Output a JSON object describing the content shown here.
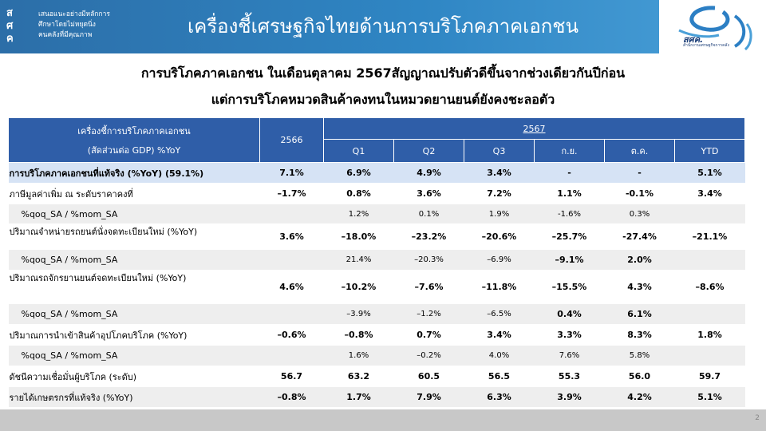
{
  "header": {
    "logo_mark": [
      "ส",
      "ศ",
      "ค"
    ],
    "logo_lines": [
      "เสนอแนะอย่างมีหลักการ",
      "ศึกษาโดยไม่หยุดนิ่ง",
      "คนคลังที่มีคุณภาพ"
    ],
    "title": "เครื่องชี้เศรษฐกิจไทยด้านการบริโภคภาคเอกชน",
    "brand": "สศค.",
    "brand_sub": "สำนักงานเศรษฐกิจการคลัง"
  },
  "headlines": [
    "การบริโภคภาคเอกชน ในเดือนตุลาคม 2567สัญญาณปรับตัวดีขึ้นจากช่วงเดียวกันปีก่อน",
    "แต่การบริโภคหมวดสินค้าคงทนในหมวดยานยนต์ยังคงชะลอตัว"
  ],
  "table": {
    "header_label_1": "เครื่องชี้การบริโภคภาคเอกชน",
    "header_label_2": "(สัดส่วนต่อ GDP) %YoY",
    "col_2566": "2566",
    "col_2567": "2567",
    "sub_cols": [
      "Q1",
      "Q2",
      "Q3",
      "ก.ย.",
      "ต.ค.",
      "YTD"
    ],
    "rows": [
      {
        "label": "การบริโภคภาคเอกชนที่แท้จริง (%YoY) (59.1%)",
        "v2566": "7.1%",
        "vals": [
          "6.9%",
          "4.9%",
          "3.4%",
          "-",
          "-",
          "5.1%"
        ]
      },
      {
        "label": "ภาษีมูลค่าเพิ่ม ณ ระดับราคาคงที่",
        "v2566": "–1.7%",
        "vals": [
          "0.8%",
          "3.6%",
          "7.2%",
          "1.1%",
          "-0.1%",
          "3.4%"
        ]
      },
      {
        "label": "%qoq_SA / %mom_SA",
        "v2566": "",
        "vals": [
          "1.2%",
          "0.1%",
          "1.9%",
          "-1.6%",
          "0.3%",
          ""
        ]
      },
      {
        "label": "ปริมาณจำหน่ายรถยนต์นั่งจดทะเบียนใหม่ (%YoY)",
        "v2566": "3.6%",
        "vals": [
          "–18.0%",
          "–23.2%",
          "–20.6%",
          "–25.7%",
          "-27.4%",
          "–21.1%"
        ]
      },
      {
        "label": "%qoq_SA / %mom_SA",
        "v2566": "",
        "vals": [
          "21.4%",
          "–20.3%",
          "–6.9%",
          "–9.1%",
          "2.0%",
          ""
        ]
      },
      {
        "label": "ปริมาณรถจักรยานยนต์จดทะเบียนใหม่ (%YoY)",
        "v2566": "4.6%",
        "vals": [
          "–10.2%",
          "–7.6%",
          "–11.8%",
          "–15.5%",
          "4.3%",
          "–8.6%"
        ]
      },
      {
        "label": "%qoq_SA / %mom_SA",
        "v2566": "",
        "vals": [
          "–3.9%",
          "–1.2%",
          "–6.5%",
          "0.4%",
          "6.1%",
          ""
        ]
      },
      {
        "label": "ปริมาณการนำเข้าสินค้าอุปโภคบริโภค (%YoY)",
        "v2566": "–0.6%",
        "vals": [
          "–0.8%",
          "0.7%",
          "3.4%",
          "3.3%",
          "8.3%",
          "1.8%"
        ]
      },
      {
        "label": "%qoq_SA / %mom_SA",
        "v2566": "",
        "vals": [
          "1.6%",
          "–0.2%",
          "4.0%",
          "7.6%",
          "5.8%",
          ""
        ]
      },
      {
        "label": "ดัชนีความเชื่อมั่นผู้บริโภค (ระดับ)",
        "v2566": "56.7",
        "vals": [
          "63.2",
          "60.5",
          "56.5",
          "55.3",
          "56.0",
          "59.7"
        ]
      },
      {
        "label": "รายได้เกษตรกรที่แท้จริง (%YoY)",
        "v2566": "–0.8%",
        "vals": [
          "1.7%",
          "7.9%",
          "6.3%",
          "3.9%",
          "4.2%",
          "5.1%"
        ]
      }
    ]
  },
  "footer": {
    "page_number": "2"
  },
  "colors": {
    "header_bg": "#2f86c4",
    "table_header_bg": "#2f5ea8",
    "highlight_row": "#d6e3f5",
    "stripe": "#eeeeee",
    "footer_bg": "#c8c8c8"
  }
}
